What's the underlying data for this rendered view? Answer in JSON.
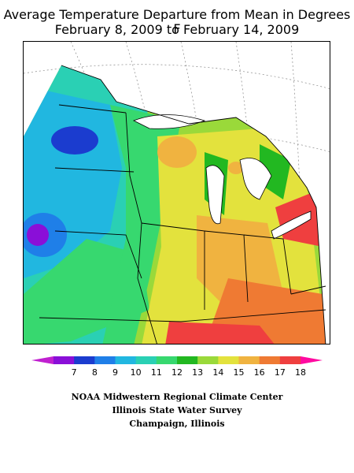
{
  "title": {
    "line1": "Average Temperature Departure from Mean in Degrees F",
    "line2": "February 8, 2009 to February 14, 2009"
  },
  "legend": {
    "ticks": [
      "7",
      "8",
      "9",
      "10",
      "11",
      "12",
      "13",
      "14",
      "15",
      "16",
      "17",
      "18"
    ],
    "colors": [
      "#8a0fd8",
      "#1b3ccf",
      "#1f7fe8",
      "#21b7e0",
      "#2ad0b4",
      "#37d86f",
      "#22b821",
      "#9ad93a",
      "#e3e23d",
      "#f0b340",
      "#ef7a33",
      "#ef3f3f",
      "#ff0aa0"
    ],
    "low_arrow_color": "#c020d0",
    "high_arrow_color": "#ff0aa0"
  },
  "credits": {
    "line1": "NOAA Midwestern Regional Climate Center",
    "line2": "Illinois State Water Survey",
    "line3": "Champaign, Illinois"
  }
}
